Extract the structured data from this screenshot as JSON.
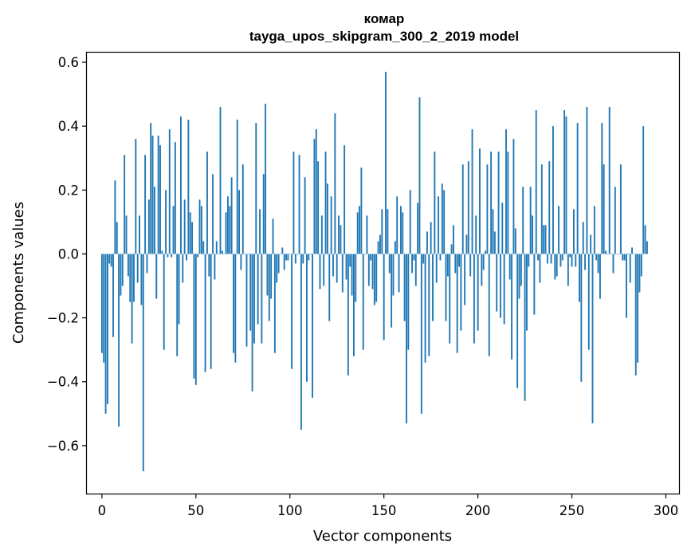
{
  "chart_data": {
    "type": "bar",
    "title": "комар",
    "subtitle": "tayga_upos_skipgram_300_2_2019 model",
    "xlabel": "Vector components",
    "ylabel": "Components values",
    "xlim": [
      -8,
      307
    ],
    "ylim": [
      -0.75,
      0.63
    ],
    "xticks": [
      0,
      50,
      100,
      150,
      200,
      250,
      300
    ],
    "xtick_labels": [
      "0",
      "50",
      "100",
      "150",
      "200",
      "250",
      "300"
    ],
    "yticks": [
      -0.6,
      -0.4,
      -0.2,
      0.0,
      0.2,
      0.4,
      0.6
    ],
    "ytick_labels": [
      "−0.6",
      "−0.4",
      "−0.2",
      "0.0",
      "0.2",
      "0.4",
      "0.6"
    ],
    "bar_color": "#1f77b4",
    "bar_width": 0.8,
    "values": [
      -0.31,
      -0.34,
      -0.5,
      -0.47,
      -0.03,
      -0.04,
      -0.26,
      0.23,
      0.1,
      -0.54,
      -0.13,
      -0.1,
      0.31,
      0.12,
      -0.07,
      -0.15,
      -0.28,
      -0.15,
      0.36,
      -0.09,
      0.12,
      -0.16,
      -0.68,
      0.31,
      -0.06,
      0.17,
      0.41,
      0.37,
      0.21,
      -0.14,
      0.37,
      0.34,
      0.01,
      -0.3,
      0.2,
      -0.01,
      0.39,
      -0.01,
      0.15,
      0.35,
      -0.32,
      -0.22,
      0.43,
      -0.09,
      0.17,
      -0.02,
      0.42,
      0.13,
      0.1,
      -0.39,
      -0.41,
      -0.01,
      0.17,
      0.15,
      0.04,
      -0.37,
      0.32,
      -0.07,
      -0.36,
      0.25,
      -0.08,
      0.04,
      0.0,
      0.46,
      0.01,
      0.0,
      0.13,
      0.18,
      0.15,
      0.24,
      -0.31,
      -0.34,
      0.42,
      0.2,
      -0.05,
      0.28,
      0.0,
      -0.29,
      0.0,
      -0.24,
      -0.43,
      -0.28,
      0.41,
      -0.22,
      0.14,
      -0.28,
      0.25,
      0.47,
      -0.13,
      -0.21,
      -0.14,
      0.11,
      -0.31,
      -0.09,
      -0.06,
      0.0,
      0.02,
      -0.05,
      -0.02,
      -0.02,
      0.0,
      -0.36,
      0.32,
      -0.03,
      0.0,
      0.31,
      -0.55,
      -0.03,
      0.24,
      -0.4,
      -0.02,
      0.0,
      -0.45,
      0.36,
      0.39,
      0.29,
      -0.11,
      0.12,
      -0.1,
      0.32,
      0.22,
      -0.21,
      0.18,
      -0.07,
      0.44,
      -0.09,
      0.12,
      0.09,
      -0.12,
      0.34,
      -0.08,
      -0.38,
      -0.04,
      -0.13,
      -0.32,
      -0.15,
      0.13,
      0.15,
      0.27,
      -0.3,
      0.0,
      0.12,
      -0.1,
      -0.02,
      -0.11,
      -0.16,
      -0.15,
      0.04,
      0.06,
      0.14,
      -0.27,
      0.57,
      0.14,
      -0.06,
      -0.23,
      -0.13,
      0.04,
      0.18,
      -0.12,
      0.15,
      0.13,
      -0.21,
      -0.53,
      -0.3,
      0.2,
      -0.06,
      -0.02,
      -0.1,
      0.16,
      0.49,
      -0.5,
      -0.03,
      -0.34,
      0.07,
      -0.32,
      0.1,
      -0.21,
      0.32,
      -0.09,
      0.18,
      -0.02,
      0.22,
      0.2,
      -0.21,
      -0.07,
      -0.28,
      0.03,
      0.09,
      -0.06,
      -0.31,
      -0.04,
      -0.24,
      0.28,
      -0.16,
      0.06,
      0.29,
      -0.07,
      0.39,
      -0.28,
      0.12,
      -0.24,
      0.33,
      -0.1,
      -0.05,
      0.01,
      0.28,
      -0.32,
      0.32,
      0.14,
      0.07,
      -0.18,
      0.32,
      -0.2,
      0.16,
      -0.22,
      0.39,
      0.32,
      -0.08,
      -0.33,
      0.36,
      0.08,
      -0.42,
      -0.14,
      -0.1,
      0.21,
      -0.46,
      -0.24,
      -0.04,
      0.21,
      0.12,
      -0.19,
      0.45,
      -0.02,
      -0.09,
      0.28,
      0.09,
      0.09,
      -0.03,
      0.29,
      -0.03,
      0.4,
      -0.08,
      -0.07,
      0.15,
      -0.04,
      -0.02,
      0.45,
      0.43,
      -0.1,
      -0.01,
      -0.04,
      0.14,
      -0.04,
      0.41,
      -0.15,
      -0.4,
      0.1,
      -0.05,
      0.46,
      -0.3,
      0.06,
      -0.53,
      0.15,
      -0.02,
      -0.06,
      -0.14,
      0.41,
      0.28,
      0.01,
      0.0,
      0.46,
      0.0,
      -0.06,
      0.21,
      0.0,
      0.0,
      0.28,
      -0.02,
      -0.02,
      -0.2,
      0.0,
      -0.09,
      0.02,
      0.0,
      -0.38,
      -0.34,
      -0.12,
      -0.07,
      0.4,
      0.09,
      0.04
    ]
  }
}
